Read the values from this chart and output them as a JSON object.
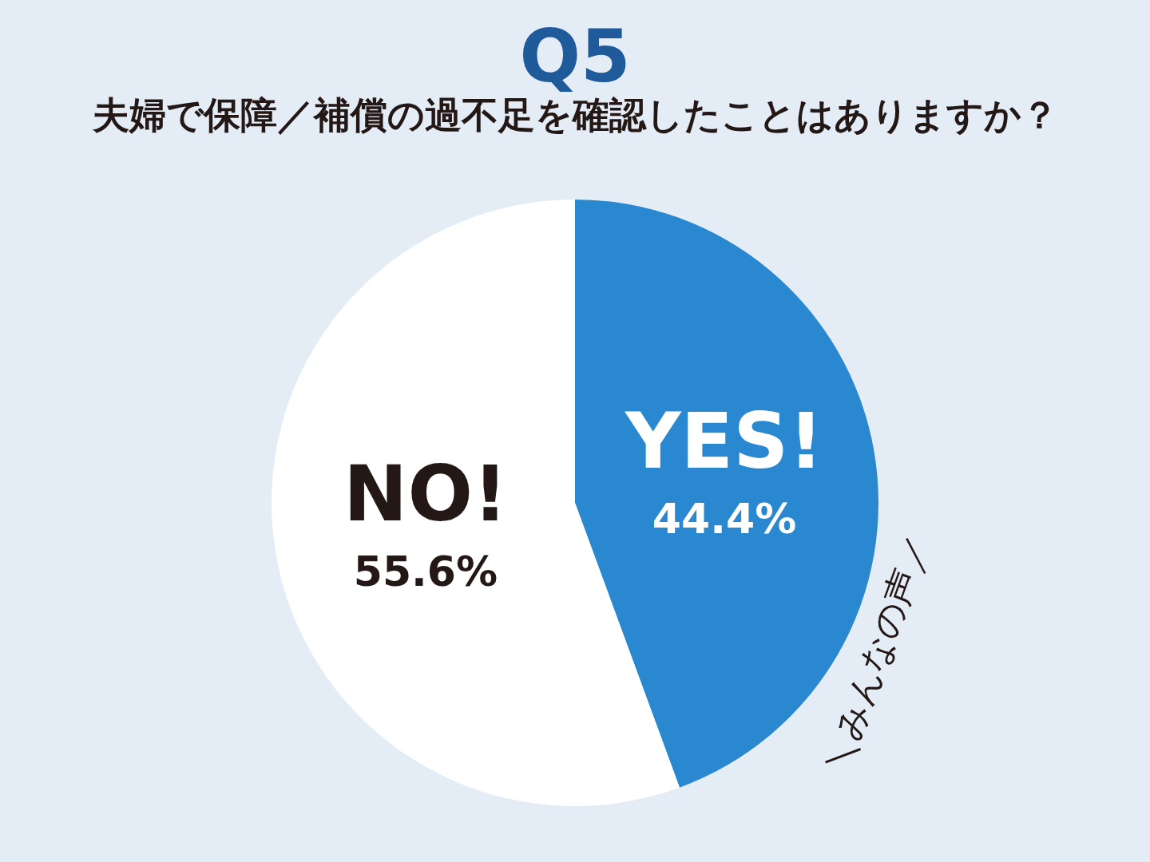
{
  "chart_data": {
    "type": "pie",
    "title": "Q5",
    "subtitle": "夫婦で保障／補償の過不足を確認したことはありますか？",
    "categories": [
      "YES!",
      "NO!"
    ],
    "values": [
      44.4,
      55.6
    ],
    "colors": [
      "#2a88d0",
      "#ffffff"
    ],
    "value_labels": [
      "44.4%",
      "55.6%"
    ],
    "annotations": [
      "＼みんなの声／"
    ],
    "legend": false
  }
}
